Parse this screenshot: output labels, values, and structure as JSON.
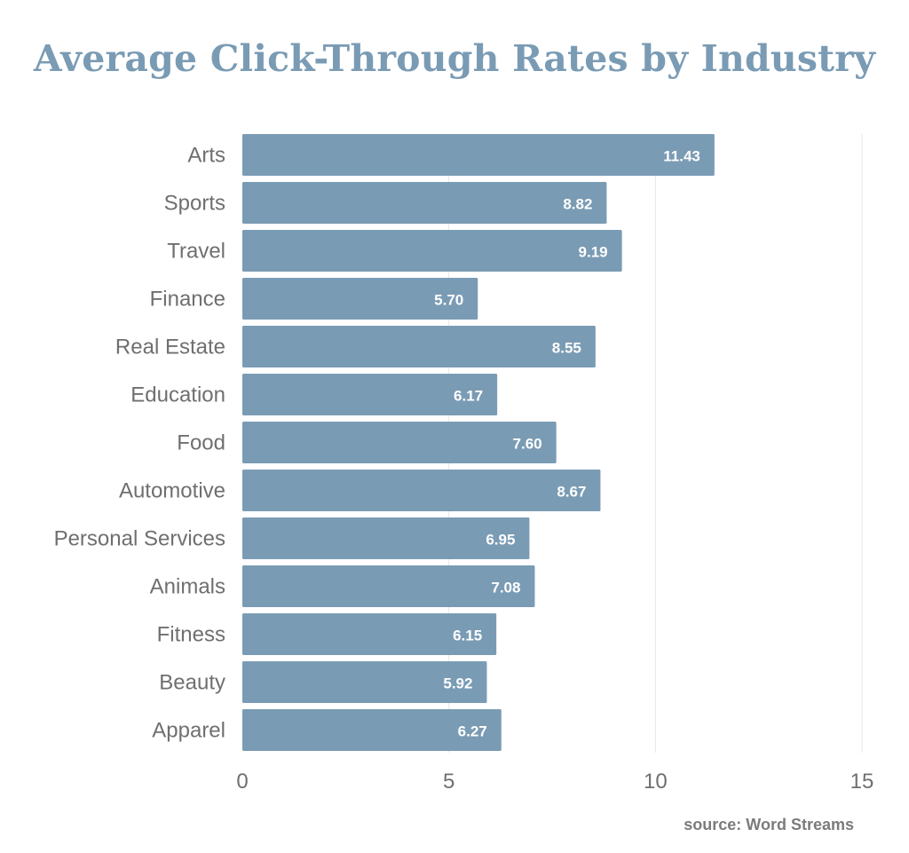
{
  "chart_data": {
    "type": "bar",
    "orientation": "horizontal",
    "title": "Average Click-Through Rates by Industry",
    "categories": [
      "Arts",
      "Sports",
      "Travel",
      "Finance",
      "Real Estate",
      "Education",
      "Food",
      "Automotive",
      "Personal Services",
      "Animals",
      "Fitness",
      "Beauty",
      "Apparel"
    ],
    "values": [
      11.43,
      8.82,
      9.19,
      5.7,
      8.55,
      6.17,
      7.6,
      8.67,
      6.95,
      7.08,
      6.15,
      5.92,
      6.27
    ],
    "value_labels": [
      "11.43",
      "8.82",
      "9.19",
      "5.70",
      "8.55",
      "6.17",
      "7.60",
      "8.67",
      "6.95",
      "7.08",
      "6.15",
      "5.92",
      "6.27"
    ],
    "xlim": [
      0,
      15
    ],
    "xticks": [
      0,
      5,
      10,
      15
    ],
    "xtick_labels": [
      "0",
      "5",
      "10",
      "15"
    ],
    "grid": true,
    "legend": "none",
    "bar_color": "#7A9BB4",
    "title_color": "#7A9BB4",
    "source": "source: Word Streams"
  }
}
